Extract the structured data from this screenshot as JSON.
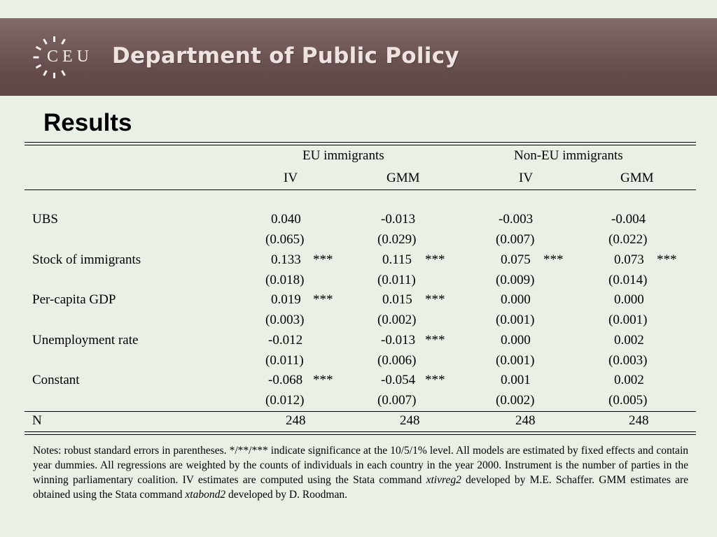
{
  "header": {
    "logo_text": "CEU",
    "department": "Department of Public Policy"
  },
  "title": "Results",
  "table": {
    "groups": [
      "EU immigrants",
      "Non-EU immigrants"
    ],
    "subheaders": [
      "IV",
      "GMM",
      "IV",
      "GMM"
    ],
    "rows": [
      {
        "label": "UBS",
        "coef": [
          "0.040",
          "-0.013",
          "-0.003",
          "-0.004"
        ],
        "stars": [
          "",
          "",
          "",
          ""
        ],
        "se": [
          "(0.065)",
          "(0.029)",
          "(0.007)",
          "(0.022)"
        ]
      },
      {
        "label": "Stock of immigrants",
        "coef": [
          "0.133",
          "0.115",
          "0.075",
          "0.073"
        ],
        "stars": [
          "***",
          "***",
          "***",
          "***"
        ],
        "se": [
          "(0.018)",
          "(0.011)",
          "(0.009)",
          "(0.014)"
        ]
      },
      {
        "label": "Per-capita GDP",
        "coef": [
          "0.019",
          "0.015",
          "0.000",
          "0.000"
        ],
        "stars": [
          "***",
          "***",
          "",
          ""
        ],
        "se": [
          "(0.003)",
          "(0.002)",
          "(0.001)",
          "(0.001)"
        ]
      },
      {
        "label": "Unemployment rate",
        "coef": [
          "-0.012",
          "-0.013",
          "0.000",
          "0.002"
        ],
        "stars": [
          "",
          "***",
          "",
          ""
        ],
        "se": [
          "(0.011)",
          "(0.006)",
          "(0.001)",
          "(0.003)"
        ]
      },
      {
        "label": "Constant",
        "coef": [
          "-0.068",
          "-0.054",
          "0.001",
          "0.002"
        ],
        "stars": [
          "***",
          "***",
          "",
          ""
        ],
        "se": [
          "(0.012)",
          "(0.007)",
          "(0.002)",
          "(0.005)"
        ]
      }
    ],
    "n_row": {
      "label": "N",
      "values": [
        "248",
        "248",
        "248",
        "248"
      ]
    }
  },
  "notes": {
    "text1": "Notes: robust standard errors in parentheses. */**/*** indicate significance at the 10/5/1% level. All models are estimated by fixed effects and contain year dummies. All regressions are weighted by the counts of individuals in each country in the year 2000. Instrument is the number of parties in the winning parliamentary coalition. IV estimates are computed using the Stata command ",
    "cmd1": "xtivreg2",
    "text2": " developed by M.E. Schaffer. GMM estimates are obtained using the Stata command ",
    "cmd2": "xtabond2",
    "text3": " developed by D. Roodman."
  }
}
